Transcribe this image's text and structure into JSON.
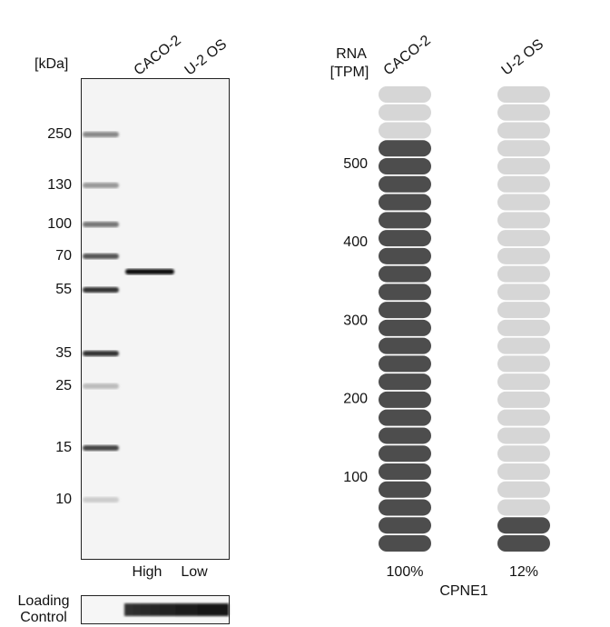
{
  "western_blot": {
    "unit_label": "[kDa]",
    "lanes": [
      "CACO-2",
      "U-2 OS"
    ],
    "markers": [
      250,
      130,
      100,
      70,
      55,
      35,
      25,
      15,
      10
    ],
    "levels": [
      "High",
      "Low"
    ],
    "loading_control": [
      "Loading",
      "Control"
    ]
  },
  "rna": {
    "axis_label": [
      "RNA",
      "[TPM]"
    ],
    "cell_lines": [
      "CACO-2",
      "U-2 OS"
    ],
    "ticks": [
      100,
      200,
      300,
      400,
      500
    ],
    "segments": 26,
    "filled_segments": [
      23,
      2
    ],
    "percentages": [
      "100%",
      "12%"
    ],
    "gene": "CPNE1"
  }
}
